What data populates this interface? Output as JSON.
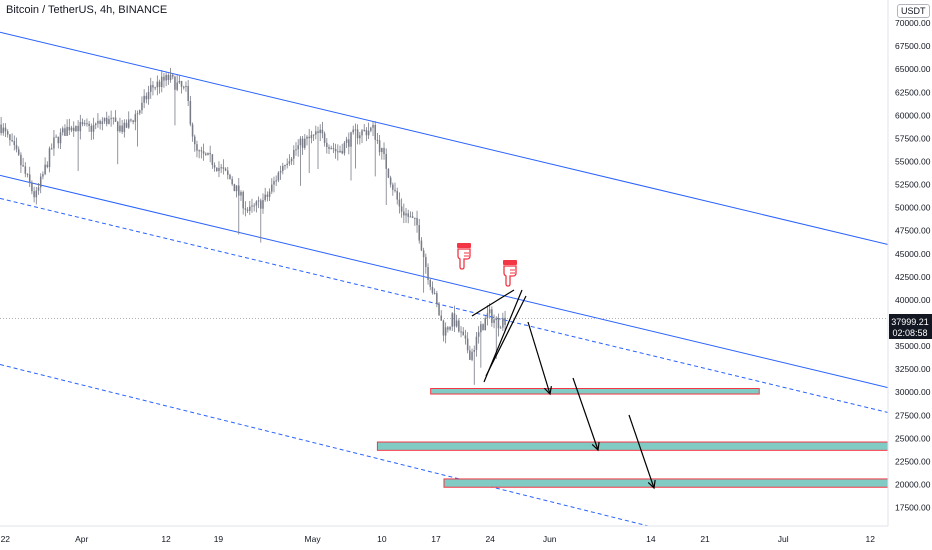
{
  "header": {
    "title": "Bitcoin / TetherUS, 4h, BINANCE",
    "currency": "USDT"
  },
  "colors": {
    "candle": "#787b86",
    "channel": "#2962ff",
    "zone_fill": "#80cbc4",
    "zone_border": "#f23645",
    "price_badge": "#131722",
    "hand_icon": "#f23645"
  },
  "price_badge": {
    "price": "37999.21",
    "countdown": "02:08:58"
  },
  "chart_data": {
    "type": "candlestick",
    "title": "",
    "xlabel": "",
    "ylabel": "",
    "ylim": [
      15500,
      72500
    ],
    "x_ticks": [
      "22",
      "Apr",
      "12",
      "19",
      "May",
      "10",
      "17",
      "24",
      "Jun",
      "14",
      "21",
      "Jul",
      "12"
    ],
    "y_ticks": [
      17500,
      20000,
      22500,
      25000,
      27500,
      30000,
      32500,
      35000,
      37500,
      40000,
      42500,
      45000,
      47500,
      50000,
      52500,
      55000,
      57500,
      60000,
      62500,
      65000,
      67500,
      70000
    ],
    "price_path": [
      {
        "x": 0.0,
        "y": 59000
      },
      {
        "x": 0.02,
        "y": 55500
      },
      {
        "x": 0.04,
        "y": 51000
      },
      {
        "x": 0.06,
        "y": 57000
      },
      {
        "x": 0.08,
        "y": 59000
      },
      {
        "x": 0.1,
        "y": 58500
      },
      {
        "x": 0.12,
        "y": 59500
      },
      {
        "x": 0.14,
        "y": 58500
      },
      {
        "x": 0.16,
        "y": 61000
      },
      {
        "x": 0.17,
        "y": 63000
      },
      {
        "x": 0.19,
        "y": 64000
      },
      {
        "x": 0.21,
        "y": 62500
      },
      {
        "x": 0.22,
        "y": 56000
      },
      {
        "x": 0.24,
        "y": 55000
      },
      {
        "x": 0.26,
        "y": 53000
      },
      {
        "x": 0.28,
        "y": 49500
      },
      {
        "x": 0.3,
        "y": 51000
      },
      {
        "x": 0.32,
        "y": 55000
      },
      {
        "x": 0.34,
        "y": 57000
      },
      {
        "x": 0.36,
        "y": 58000
      },
      {
        "x": 0.38,
        "y": 56000
      },
      {
        "x": 0.4,
        "y": 58000
      },
      {
        "x": 0.42,
        "y": 58500
      },
      {
        "x": 0.43,
        "y": 56000
      },
      {
        "x": 0.45,
        "y": 50000
      },
      {
        "x": 0.47,
        "y": 48000
      },
      {
        "x": 0.48,
        "y": 43500
      },
      {
        "x": 0.49,
        "y": 40000
      },
      {
        "x": 0.5,
        "y": 36500
      },
      {
        "x": 0.51,
        "y": 38000
      },
      {
        "x": 0.52,
        "y": 36000
      },
      {
        "x": 0.53,
        "y": 34000
      },
      {
        "x": 0.54,
        "y": 36500
      },
      {
        "x": 0.55,
        "y": 38500
      },
      {
        "x": 0.56,
        "y": 37500
      },
      {
        "x": 0.57,
        "y": 38000
      }
    ],
    "channel_lines": [
      {
        "name": "",
        "style": "solid",
        "points": [
          {
            "x": 0.0,
            "y": 69000
          },
          {
            "x": 1.0,
            "y": 46000
          }
        ]
      },
      {
        "name": "",
        "style": "solid",
        "points": [
          {
            "x": 0.0,
            "y": 53500
          },
          {
            "x": 1.0,
            "y": 30500
          }
        ]
      },
      {
        "name": "",
        "style": "dashed",
        "points": [
          {
            "x": 0.0,
            "y": 51000
          },
          {
            "x": 1.0,
            "y": 27800
          }
        ]
      },
      {
        "name": "",
        "style": "dashed",
        "points": [
          {
            "x": 0.0,
            "y": 33000
          },
          {
            "x": 0.73,
            "y": 15500
          }
        ]
      }
    ],
    "zones": [
      {
        "x_start": 0.485,
        "x_end": 0.855,
        "y_low": 29800,
        "y_high": 30400
      },
      {
        "x_start": 0.425,
        "x_end": 1.0,
        "y_low": 23700,
        "y_high": 24600
      },
      {
        "x_start": 0.5,
        "x_end": 1.0,
        "y_low": 19700,
        "y_high": 20600
      }
    ],
    "current_price": 37999.21
  }
}
